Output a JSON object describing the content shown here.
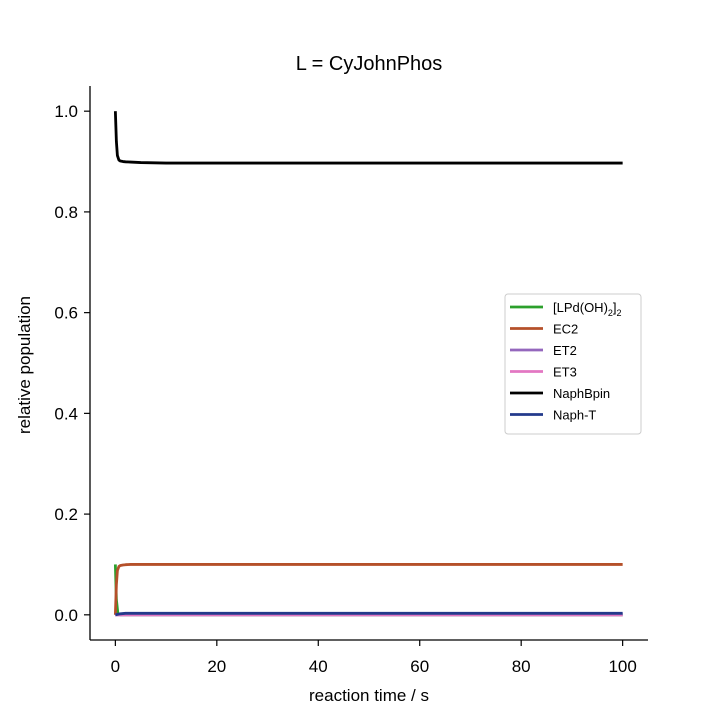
{
  "chart_data": {
    "type": "line",
    "title": "L = CyJohnPhos",
    "xlabel": "reaction time / s",
    "ylabel": "relative population",
    "xlim": [
      -5,
      105
    ],
    "ylim": [
      -0.05,
      1.05
    ],
    "xticks": [
      0,
      20,
      40,
      60,
      80,
      100
    ],
    "xtick_labels": [
      "0",
      "20",
      "40",
      "60",
      "80",
      "100"
    ],
    "yticks": [
      0.0,
      0.2,
      0.4,
      0.6,
      0.8,
      1.0
    ],
    "ytick_labels": [
      "0.0",
      "0.2",
      "0.4",
      "0.6",
      "0.8",
      "1.0"
    ],
    "grid": false,
    "legend_position": "center-right",
    "series": [
      {
        "name": "[LPd(OH)2]2",
        "label_main": "[LPd(OH)",
        "label_sub1": "2",
        "label_mid": "]",
        "label_sub2": "2",
        "color": "#2ca02c",
        "x": [
          0,
          0.2,
          0.5,
          1,
          100
        ],
        "y": [
          0.1,
          0.03,
          0.002,
          0,
          0
        ]
      },
      {
        "name": "EC2",
        "color": "#b5502a",
        "x": [
          0,
          0.2,
          0.4,
          0.7,
          1,
          1.5,
          2,
          3,
          5,
          8,
          15,
          100
        ],
        "y": [
          0.0,
          0.06,
          0.088,
          0.096,
          0.098,
          0.099,
          0.0995,
          0.1,
          0.1,
          0.1,
          0.1,
          0.1
        ]
      },
      {
        "name": "ET2",
        "color": "#9467bd",
        "x": [
          0,
          100
        ],
        "y": [
          0,
          0
        ]
      },
      {
        "name": "ET3",
        "color": "#e377c2",
        "x": [
          0,
          100
        ],
        "y": [
          0,
          0
        ]
      },
      {
        "name": "NaphBpin",
        "color": "#000000",
        "x": [
          0,
          0.2,
          0.4,
          0.7,
          1,
          1.5,
          2,
          3,
          5,
          10,
          100
        ],
        "y": [
          1.0,
          0.94,
          0.912,
          0.903,
          0.901,
          0.9,
          0.8995,
          0.899,
          0.898,
          0.897,
          0.897
        ]
      },
      {
        "name": "Naph-T",
        "color": "#233a8b",
        "x": [
          0,
          0.5,
          1,
          2,
          4,
          100
        ],
        "y": [
          0.0,
          0.001,
          0.002,
          0.003,
          0.003,
          0.003
        ]
      }
    ]
  }
}
